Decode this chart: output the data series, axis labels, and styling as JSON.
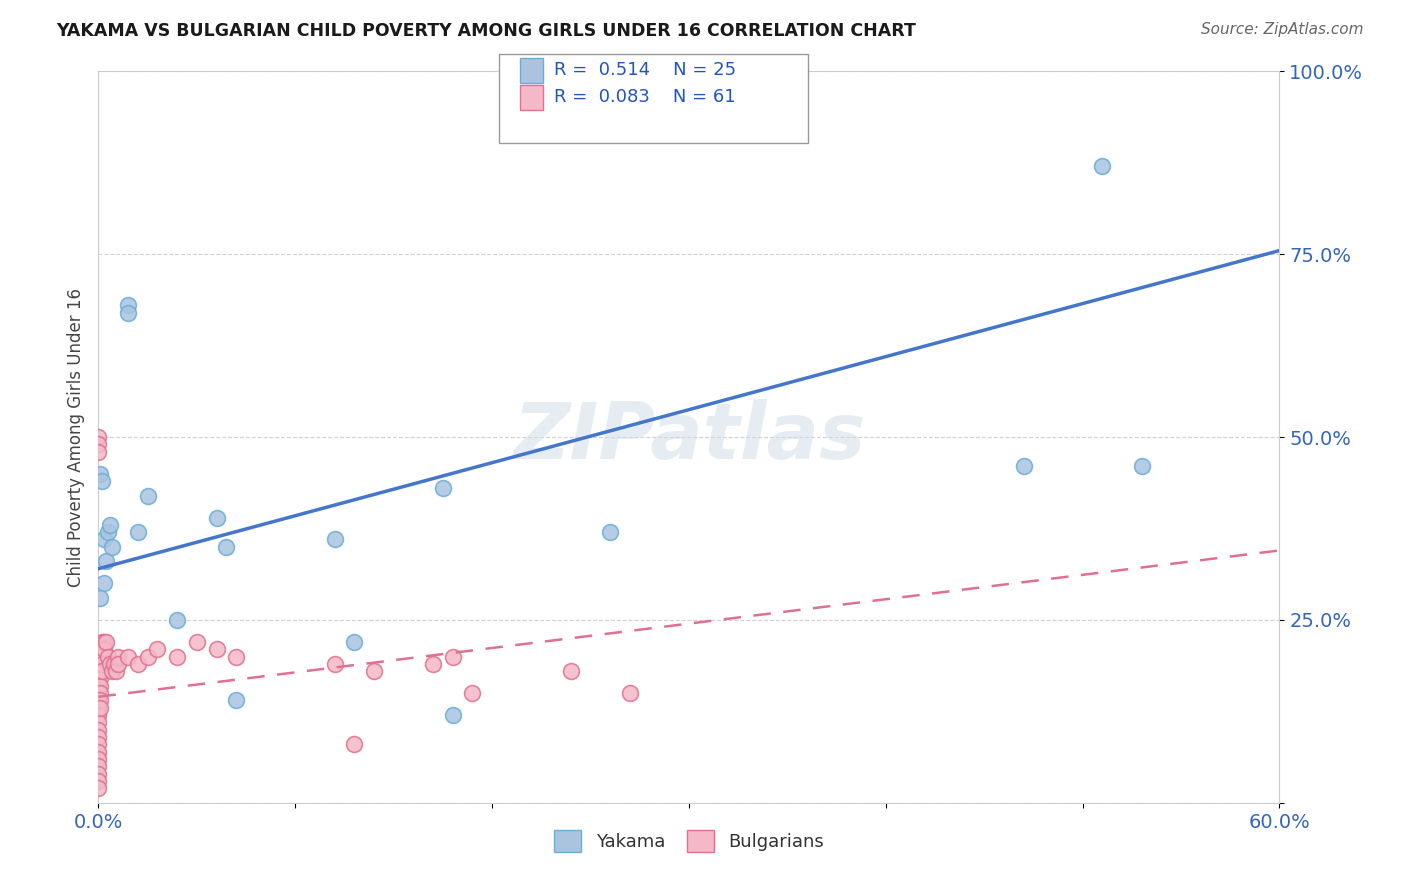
{
  "title": "YAKAMA VS BULGARIAN CHILD POVERTY AMONG GIRLS UNDER 16 CORRELATION CHART",
  "source": "Source: ZipAtlas.com",
  "ylabel": "Child Poverty Among Girls Under 16",
  "background_color": "#ffffff",
  "watermark": "ZIPatlas",
  "yakama_R": 0.514,
  "yakama_N": 25,
  "bulgarian_R": 0.083,
  "bulgarian_N": 61,
  "yakama_color": "#aac4e0",
  "yakama_edge": "#6aaed6",
  "bulgarian_color": "#f4b8c8",
  "bulgarian_edge": "#e07090",
  "yakama_line_color": "#4477cc",
  "bulgarian_line_color": "#e07090",
  "xlim": [
    0.0,
    0.6
  ],
  "ylim": [
    0.0,
    1.0
  ],
  "x_ticks": [
    0.0,
    0.1,
    0.2,
    0.3,
    0.4,
    0.5,
    0.6
  ],
  "x_tick_labels": [
    "0.0%",
    "",
    "",
    "",
    "",
    "",
    "60.0%"
  ],
  "y_ticks": [
    0.0,
    0.25,
    0.5,
    0.75,
    1.0
  ],
  "y_tick_labels_right": [
    "",
    "25.0%",
    "50.0%",
    "75.0%",
    "100.0%"
  ],
  "yakama_line_x": [
    0.0,
    0.6
  ],
  "yakama_line_y": [
    0.32,
    0.755
  ],
  "bulgarian_line_x": [
    0.0,
    0.6
  ],
  "bulgarian_line_y": [
    0.145,
    0.345
  ],
  "yakama_points": [
    [
      0.001,
      0.45
    ],
    [
      0.002,
      0.44
    ],
    [
      0.003,
      0.36
    ],
    [
      0.003,
      0.3
    ],
    [
      0.004,
      0.33
    ],
    [
      0.005,
      0.37
    ],
    [
      0.006,
      0.38
    ],
    [
      0.007,
      0.35
    ],
    [
      0.015,
      0.68
    ],
    [
      0.015,
      0.67
    ],
    [
      0.02,
      0.37
    ],
    [
      0.025,
      0.42
    ],
    [
      0.04,
      0.25
    ],
    [
      0.06,
      0.39
    ],
    [
      0.065,
      0.35
    ],
    [
      0.12,
      0.36
    ],
    [
      0.13,
      0.22
    ],
    [
      0.175,
      0.43
    ],
    [
      0.26,
      0.37
    ],
    [
      0.47,
      0.46
    ],
    [
      0.51,
      0.87
    ],
    [
      0.53,
      0.46
    ],
    [
      0.07,
      0.14
    ],
    [
      0.18,
      0.12
    ],
    [
      0.001,
      0.28
    ]
  ],
  "bulgarian_points": [
    [
      0.0,
      0.5
    ],
    [
      0.0,
      0.49
    ],
    [
      0.0,
      0.17
    ],
    [
      0.0,
      0.165
    ],
    [
      0.0,
      0.16
    ],
    [
      0.0,
      0.155
    ],
    [
      0.0,
      0.15
    ],
    [
      0.0,
      0.145
    ],
    [
      0.0,
      0.14
    ],
    [
      0.0,
      0.13
    ],
    [
      0.0,
      0.12
    ],
    [
      0.0,
      0.11
    ],
    [
      0.0,
      0.1
    ],
    [
      0.0,
      0.09
    ],
    [
      0.0,
      0.08
    ],
    [
      0.0,
      0.07
    ],
    [
      0.0,
      0.06
    ],
    [
      0.0,
      0.05
    ],
    [
      0.0,
      0.04
    ],
    [
      0.0,
      0.03
    ],
    [
      0.001,
      0.2
    ],
    [
      0.001,
      0.19
    ],
    [
      0.001,
      0.18
    ],
    [
      0.001,
      0.17
    ],
    [
      0.001,
      0.16
    ],
    [
      0.001,
      0.15
    ],
    [
      0.001,
      0.14
    ],
    [
      0.001,
      0.13
    ],
    [
      0.002,
      0.22
    ],
    [
      0.002,
      0.21
    ],
    [
      0.002,
      0.2
    ],
    [
      0.002,
      0.19
    ],
    [
      0.002,
      0.18
    ],
    [
      0.003,
      0.22
    ],
    [
      0.003,
      0.21
    ],
    [
      0.004,
      0.22
    ],
    [
      0.005,
      0.2
    ],
    [
      0.006,
      0.19
    ],
    [
      0.007,
      0.18
    ],
    [
      0.008,
      0.19
    ],
    [
      0.009,
      0.18
    ],
    [
      0.01,
      0.2
    ],
    [
      0.01,
      0.19
    ],
    [
      0.015,
      0.2
    ],
    [
      0.02,
      0.19
    ],
    [
      0.025,
      0.2
    ],
    [
      0.03,
      0.21
    ],
    [
      0.04,
      0.2
    ],
    [
      0.05,
      0.22
    ],
    [
      0.06,
      0.21
    ],
    [
      0.07,
      0.2
    ],
    [
      0.12,
      0.19
    ],
    [
      0.13,
      0.08
    ],
    [
      0.14,
      0.18
    ],
    [
      0.17,
      0.19
    ],
    [
      0.18,
      0.2
    ],
    [
      0.19,
      0.15
    ],
    [
      0.24,
      0.18
    ],
    [
      0.27,
      0.15
    ],
    [
      0.0,
      0.48
    ],
    [
      0.0,
      0.02
    ]
  ]
}
